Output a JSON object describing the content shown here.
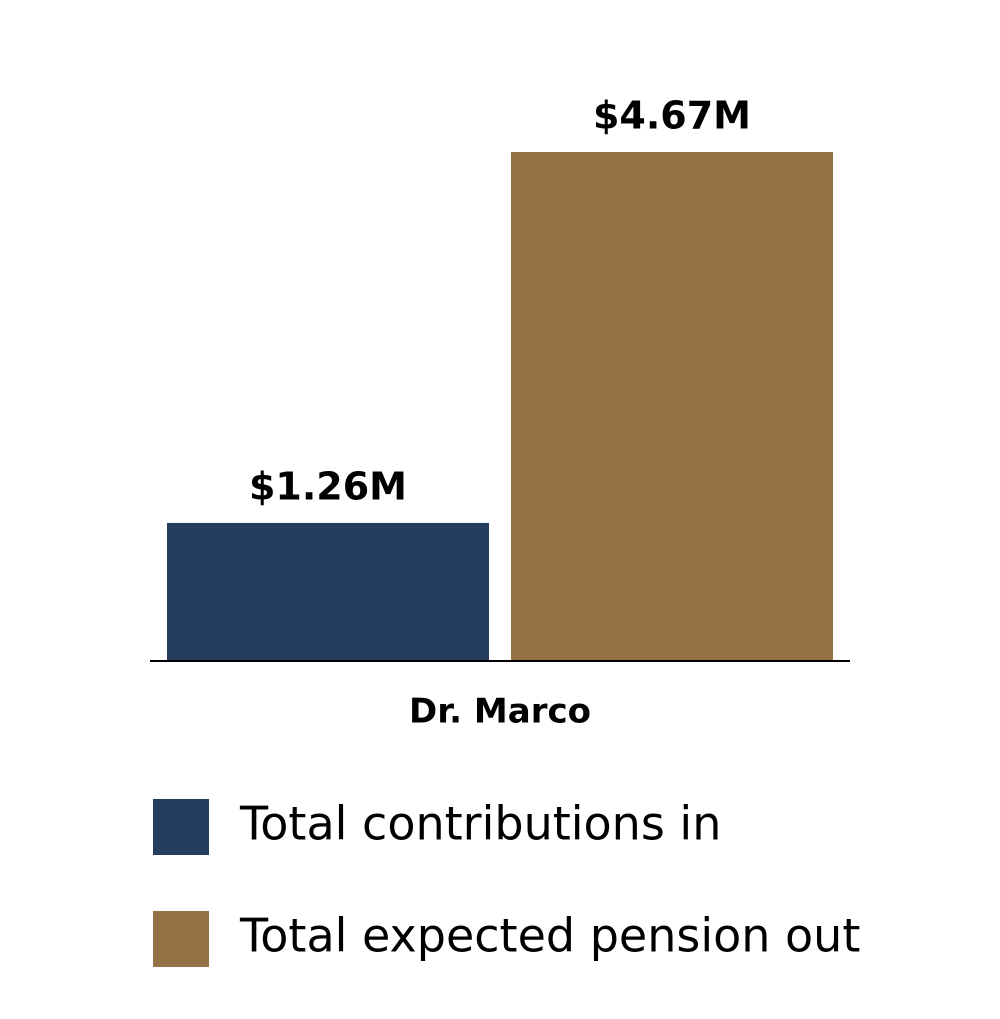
{
  "chart_data": {
    "type": "bar",
    "categories": [
      "Dr. Marco"
    ],
    "series": [
      {
        "name": "Total contributions in",
        "color": "#253d5e",
        "values": [
          1.26
        ],
        "value_labels": [
          "$1.26M"
        ]
      },
      {
        "name": "Total expected pension out",
        "color": "#967145",
        "values": [
          4.67
        ],
        "value_labels": [
          "$4.67M"
        ]
      }
    ]
  }
}
